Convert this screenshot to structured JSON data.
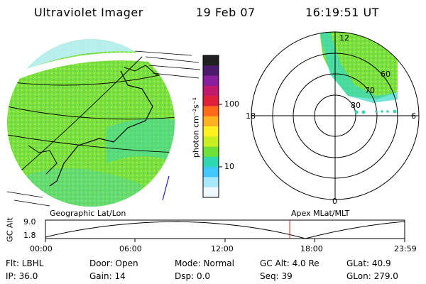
{
  "header": {
    "title": "Ultraviolet Imager",
    "date": "19 Feb 07",
    "time": "16:19:51 UT"
  },
  "colorbar": {
    "unit_label": "photon cm⁻²s⁻¹",
    "ticks": [
      "100",
      "10"
    ],
    "colors": [
      "#202020",
      "#4b1a6b",
      "#8a1f9e",
      "#c21a6e",
      "#e0203a",
      "#ff6a1a",
      "#ffb020",
      "#fff020",
      "#c8f020",
      "#6ee03a",
      "#2fd8b0",
      "#40c8ff",
      "#a8e8ff",
      "#f0f8ff"
    ]
  },
  "polar_plot": {
    "mlt_labels": [
      "12",
      "18",
      "6",
      "0"
    ],
    "lat_labels": [
      "80",
      "70",
      "60"
    ]
  },
  "map_labels": {
    "left": "Geographic Lat/Lon",
    "right": "Apex MLat/MLT"
  },
  "altitude_plot": {
    "axis_label": "GC Alt",
    "ymax": "9.0",
    "ymin": "1.8",
    "time_ticks": [
      "00:00",
      "06:00",
      "12:00",
      "18:00",
      "23:59"
    ],
    "current_time_fraction": 0.68
  },
  "info": {
    "flt": "Flt: LBHL",
    "ip": "IP: 36.0",
    "door": "Door: Open",
    "gain": "Gain: 14",
    "mode": "Mode: Normal",
    "dsp": "Dsp:     0.0",
    "gcalt": "GC Alt: 4.0 Re",
    "seq": "Seq: 39",
    "glat": "GLat:  40.9",
    "glon": "GLon: 279.0"
  }
}
